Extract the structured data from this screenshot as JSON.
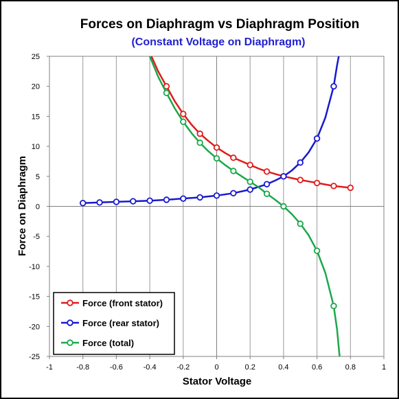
{
  "chart_data": {
    "type": "line",
    "title": "Forces on Diaphragm vs Diaphragm Position",
    "subtitle": "(Constant Voltage on Diaphragm)",
    "xlabel": "Stator Voltage",
    "ylabel": "Force on Diaphragm",
    "xlim": [
      -1,
      1
    ],
    "ylim": [
      -25,
      25
    ],
    "x_ticks": [
      "-1",
      "-0.8",
      "-0.6",
      "-0.4",
      "-0.2",
      "0",
      "0.2",
      "0.4",
      "0.6",
      "0.8",
      "1"
    ],
    "y_ticks": [
      "25",
      "20",
      "15",
      "10",
      "5",
      "0",
      "-5",
      "-10",
      "-15",
      "-20",
      "-25"
    ],
    "grid": "vertical",
    "legend_position": "bottom-left",
    "series": [
      {
        "name": "Force (front stator)",
        "color": "#e01b1b",
        "x": [
          -0.3,
          -0.2,
          -0.1,
          0.0,
          0.1,
          0.2,
          0.3,
          0.4,
          0.5,
          0.6,
          0.7,
          0.8
        ],
        "y": [
          20.0,
          15.4,
          12.1,
          9.8,
          8.1,
          6.9,
          5.8,
          5.0,
          4.4,
          3.9,
          3.4,
          3.1
        ],
        "curve_x": [
          -0.39,
          -0.35,
          -0.3,
          -0.25,
          -0.2,
          -0.15,
          -0.1,
          -0.05,
          0.0,
          0.05,
          0.1,
          0.15,
          0.2,
          0.25,
          0.3,
          0.35,
          0.4,
          0.45,
          0.5,
          0.55,
          0.6,
          0.65,
          0.7,
          0.75,
          0.8
        ],
        "curve_y": [
          25.0,
          22.5,
          20.0,
          17.5,
          15.4,
          13.6,
          12.1,
          10.9,
          9.8,
          8.9,
          8.1,
          7.5,
          6.9,
          6.3,
          5.8,
          5.4,
          5.0,
          4.7,
          4.4,
          4.15,
          3.9,
          3.65,
          3.4,
          3.25,
          3.1
        ]
      },
      {
        "name": "Force (rear stator)",
        "color": "#1818d0",
        "x": [
          -0.8,
          -0.7,
          -0.6,
          -0.5,
          -0.4,
          -0.3,
          -0.2,
          -0.1,
          0.0,
          0.1,
          0.2,
          0.3,
          0.4,
          0.5,
          0.6,
          0.7
        ],
        "y": [
          0.55,
          0.65,
          0.75,
          0.85,
          0.95,
          1.1,
          1.3,
          1.5,
          1.8,
          2.2,
          2.8,
          3.7,
          5.0,
          7.3,
          11.3,
          20.0
        ],
        "curve_x": [
          -0.8,
          -0.7,
          -0.6,
          -0.5,
          -0.4,
          -0.3,
          -0.2,
          -0.1,
          0.0,
          0.1,
          0.2,
          0.3,
          0.35,
          0.4,
          0.45,
          0.5,
          0.55,
          0.6,
          0.65,
          0.7,
          0.72,
          0.73
        ],
        "curve_y": [
          0.55,
          0.65,
          0.75,
          0.85,
          0.95,
          1.1,
          1.3,
          1.5,
          1.8,
          2.2,
          2.8,
          3.7,
          4.3,
          5.0,
          6.0,
          7.3,
          9.0,
          11.3,
          14.8,
          20.0,
          23.5,
          25.0
        ]
      },
      {
        "name": "Force (total)",
        "color": "#1aa84a",
        "x": [
          -0.3,
          -0.2,
          -0.1,
          0.0,
          0.1,
          0.2,
          0.3,
          0.4,
          0.5,
          0.6,
          0.7
        ],
        "y": [
          18.9,
          14.1,
          10.6,
          8.0,
          5.9,
          4.1,
          2.1,
          0.0,
          -2.9,
          -7.4,
          -16.6
        ],
        "curve_x": [
          -0.4,
          -0.35,
          -0.3,
          -0.25,
          -0.2,
          -0.15,
          -0.1,
          -0.05,
          0.0,
          0.05,
          0.1,
          0.15,
          0.2,
          0.25,
          0.3,
          0.35,
          0.4,
          0.45,
          0.5,
          0.55,
          0.6,
          0.65,
          0.7,
          0.72,
          0.735
        ],
        "curve_y": [
          25.0,
          21.6,
          18.9,
          16.3,
          14.1,
          12.2,
          10.6,
          9.2,
          8.0,
          6.9,
          5.9,
          5.0,
          4.1,
          3.2,
          2.1,
          1.1,
          0.0,
          -1.3,
          -2.9,
          -4.8,
          -7.4,
          -11.1,
          -16.6,
          -20.5,
          -25.0
        ]
      }
    ]
  }
}
